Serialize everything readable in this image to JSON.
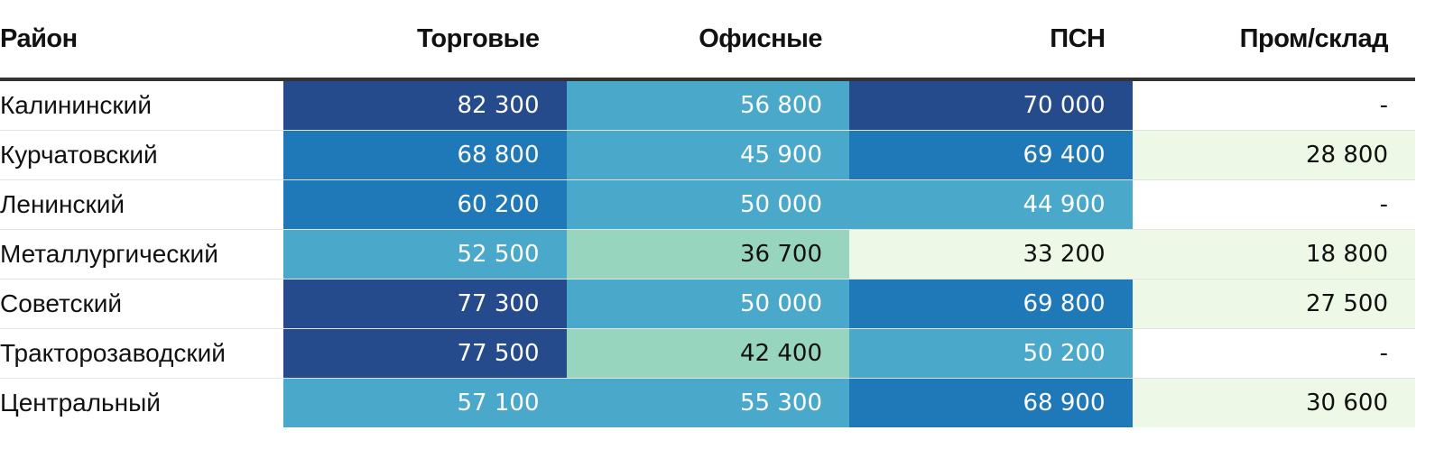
{
  "chart_data": {
    "type": "heatmap",
    "title": "",
    "row_header": "Район",
    "columns": [
      "Торговые",
      "Офисные",
      "ПСН",
      "Пром/склад"
    ],
    "rows": [
      {
        "district": "Калининский",
        "display": [
          "82 300",
          "56 800",
          "70 000",
          "-"
        ],
        "values": [
          82300,
          56800,
          70000,
          null
        ]
      },
      {
        "district": "Курчатовский",
        "display": [
          "68 800",
          "45 900",
          "69 400",
          "28 800"
        ],
        "values": [
          68800,
          45900,
          69400,
          28800
        ]
      },
      {
        "district": "Ленинский",
        "display": [
          "60 200",
          "50 000",
          "44 900",
          "-"
        ],
        "values": [
          60200,
          50000,
          44900,
          null
        ]
      },
      {
        "district": "Металлургический",
        "display": [
          "52 500",
          "36 700",
          "33 200",
          "18 800"
        ],
        "values": [
          52500,
          36700,
          33200,
          18800
        ]
      },
      {
        "district": "Советский",
        "display": [
          "77 300",
          "50 000",
          "69 800",
          "27 500"
        ],
        "values": [
          77300,
          50000,
          69800,
          27500
        ]
      },
      {
        "district": "Тракторозаводский",
        "display": [
          "77 500",
          "42 400",
          "50 200",
          "-"
        ],
        "values": [
          77500,
          42400,
          50200,
          null
        ]
      },
      {
        "district": "Центральный",
        "display": [
          "57 100",
          "55 300",
          "68 900",
          "30 600"
        ],
        "values": [
          57100,
          55300,
          68900,
          30600
        ]
      }
    ],
    "color_scale": [
      {
        "min": 0,
        "max": 34999,
        "color": "#edf8e6",
        "text": "#111111"
      },
      {
        "min": 35000,
        "max": 44499,
        "color": "#98d5be",
        "text": "#111111"
      },
      {
        "min": 44500,
        "max": 57999,
        "color": "#4aa8cb",
        "text": "#ffffff"
      },
      {
        "min": 58000,
        "max": 69999,
        "color": "#1f78b7",
        "text": "#ffffff"
      },
      {
        "min": 70000,
        "max": 100000,
        "color": "#254b8c",
        "text": "#ffffff"
      }
    ],
    "empty_color": "#ffffff",
    "grid": false,
    "legend": "none"
  }
}
